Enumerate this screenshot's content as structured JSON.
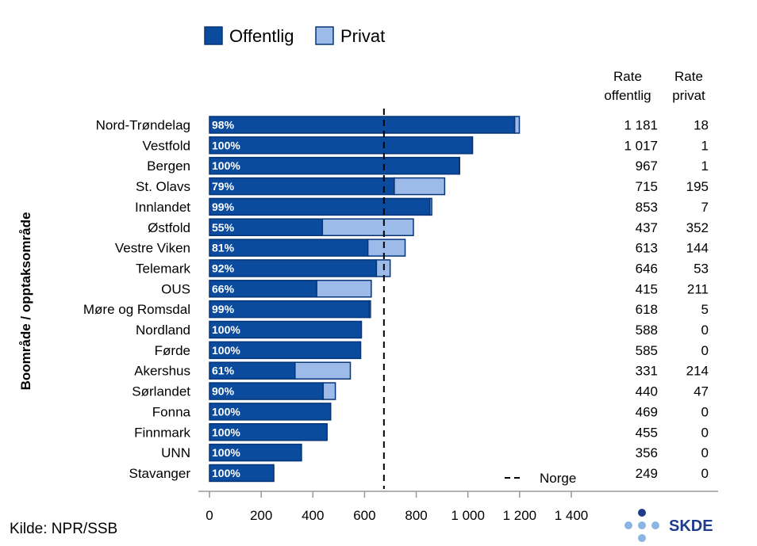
{
  "chart_data": {
    "type": "bar",
    "stacked": true,
    "orientation": "horizontal",
    "ylabel": "Boområde / opptaksområde",
    "xlim": [
      0,
      1400
    ],
    "xticks": [
      0,
      200,
      400,
      600,
      800,
      1000,
      1200,
      1400
    ],
    "xtick_labels": [
      "0",
      "200",
      "400",
      "600",
      "800",
      "1 000",
      "1 200",
      "1 400"
    ],
    "categories": [
      "Nord-Trøndelag",
      "Vestfold",
      "Bergen",
      "St. Olavs",
      "Innlandet",
      "Østfold",
      "Vestre Viken",
      "Telemark",
      "OUS",
      "Møre og Romsdal",
      "Nordland",
      "Førde",
      "Akershus",
      "Sørlandet",
      "Fonna",
      "Finnmark",
      "UNN",
      "Stavanger"
    ],
    "series": [
      {
        "name": "Offentlig",
        "color": "#0a4b9e",
        "values": [
          1181,
          1017,
          967,
          715,
          853,
          437,
          613,
          646,
          415,
          618,
          588,
          585,
          331,
          440,
          469,
          455,
          356,
          249
        ]
      },
      {
        "name": "Privat",
        "color": "#9dbbe8",
        "values": [
          18,
          1,
          1,
          195,
          7,
          352,
          144,
          53,
          211,
          5,
          0,
          0,
          214,
          47,
          0,
          0,
          0,
          0
        ]
      }
    ],
    "share_labels": [
      "98%",
      "100%",
      "100%",
      "79%",
      "99%",
      "55%",
      "81%",
      "92%",
      "66%",
      "99%",
      "100%",
      "100%",
      "61%",
      "90%",
      "100%",
      "100%",
      "100%",
      "100%"
    ],
    "rate_offentlig_labels": [
      "1 181",
      "1 017",
      "967",
      "715",
      "853",
      "437",
      "613",
      "646",
      "415",
      "618",
      "588",
      "585",
      "331",
      "440",
      "469",
      "455",
      "356",
      "249"
    ],
    "rate_privat_labels": [
      "18",
      "1",
      "1",
      "195",
      "7",
      "352",
      "144",
      "53",
      "211",
      "5",
      "0",
      "0",
      "214",
      "47",
      "0",
      "0",
      "0",
      "0"
    ],
    "rate_headers": {
      "offentlig": [
        "Rate",
        "offentlig"
      ],
      "privat": [
        "Rate",
        "privat"
      ]
    },
    "reference_line": {
      "name": "Norge",
      "value": 675
    },
    "legend_position": "top"
  },
  "footer": {
    "source": "Kilde: NPR/SSB",
    "logo_text": "SKDE"
  }
}
